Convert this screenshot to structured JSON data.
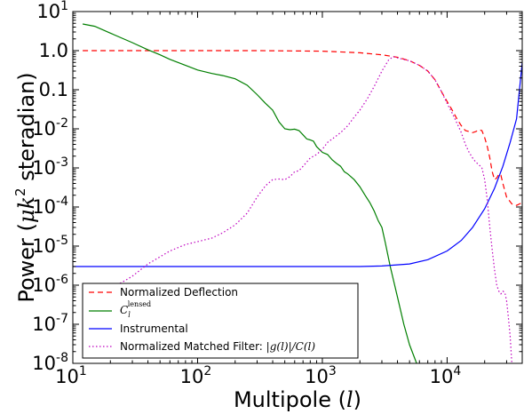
{
  "chart_data": {
    "type": "line",
    "xlabel_prefix": "Multipole (",
    "xlabel_var": "l",
    "xlabel_suffix": ")",
    "ylabel_prefix": "Power (",
    "ylabel_var": "μk",
    "ylabel_sup": "2",
    "ylabel_suffix": " steradian)",
    "x_scale": "log",
    "y_scale": "log",
    "xlim": [
      10,
      40000
    ],
    "ylim": [
      1e-08,
      10
    ],
    "x_ticks": [
      {
        "value": 10,
        "base": "10",
        "exp": "1"
      },
      {
        "value": 100,
        "base": "10",
        "exp": "2"
      },
      {
        "value": 1000,
        "base": "10",
        "exp": "3"
      },
      {
        "value": 10000,
        "base": "10",
        "exp": "4"
      }
    ],
    "y_ticks": [
      {
        "value": 10,
        "base": "10",
        "exp": "1"
      },
      {
        "value": 1,
        "base": "10",
        "exp": "0",
        "label": "1.0"
      },
      {
        "value": 0.1,
        "base": "10",
        "exp": "-1",
        "label": "0.1"
      },
      {
        "value": 0.01,
        "base": "10",
        "exp": "-2"
      },
      {
        "value": 0.001,
        "base": "10",
        "exp": "-3"
      },
      {
        "value": 0.0001,
        "base": "10",
        "exp": "-4"
      },
      {
        "value": 1e-05,
        "base": "10",
        "exp": "-5"
      },
      {
        "value": 1e-06,
        "base": "10",
        "exp": "-6"
      },
      {
        "value": 1e-07,
        "base": "10",
        "exp": "-7"
      },
      {
        "value": 1e-08,
        "base": "10",
        "exp": "-8"
      }
    ],
    "grid": false,
    "legend_position": "lower-left",
    "series": [
      {
        "key": "deflection",
        "name": "Normalized Deflection",
        "color": "#ff0000",
        "style": "dashed",
        "points": [
          [
            12,
            1.0
          ],
          [
            30,
            1.0
          ],
          [
            100,
            1.0
          ],
          [
            300,
            1.0
          ],
          [
            1000,
            0.97
          ],
          [
            2000,
            0.88
          ],
          [
            3000,
            0.78
          ],
          [
            4000,
            0.68
          ],
          [
            5000,
            0.55
          ],
          [
            6000,
            0.42
          ],
          [
            7000,
            0.3
          ],
          [
            8000,
            0.18
          ],
          [
            9000,
            0.09
          ],
          [
            10000,
            0.05
          ],
          [
            11000,
            0.03
          ],
          [
            12000,
            0.018
          ],
          [
            13000,
            0.012
          ],
          [
            14000,
            0.009
          ],
          [
            15000,
            0.0085
          ],
          [
            16000,
            0.008
          ],
          [
            17000,
            0.0085
          ],
          [
            18000,
            0.0095
          ],
          [
            19000,
            0.009
          ],
          [
            20000,
            0.006
          ],
          [
            21000,
            0.0035
          ],
          [
            22000,
            0.0018
          ],
          [
            23000,
            0.0008
          ],
          [
            24000,
            0.0005
          ],
          [
            25000,
            0.00055
          ],
          [
            26000,
            0.0007
          ],
          [
            27000,
            0.00065
          ],
          [
            28000,
            0.0004
          ],
          [
            30000,
            0.00018
          ],
          [
            33000,
            0.00012
          ],
          [
            36000,
            0.00011
          ],
          [
            40000,
            0.00013
          ]
        ]
      },
      {
        "key": "cl_lensed",
        "name_prefix": "C",
        "name_sub": "l",
        "name_sup": "lensed",
        "color": "#007f00",
        "style": "solid",
        "points": [
          [
            12,
            4.8
          ],
          [
            15,
            4.2
          ],
          [
            20,
            2.8
          ],
          [
            30,
            1.6
          ],
          [
            40,
            1.05
          ],
          [
            50,
            0.78
          ],
          [
            60,
            0.6
          ],
          [
            80,
            0.42
          ],
          [
            100,
            0.32
          ],
          [
            130,
            0.26
          ],
          [
            160,
            0.23
          ],
          [
            200,
            0.19
          ],
          [
            250,
            0.13
          ],
          [
            300,
            0.075
          ],
          [
            350,
            0.045
          ],
          [
            400,
            0.03
          ],
          [
            450,
            0.015
          ],
          [
            500,
            0.01
          ],
          [
            550,
            0.0095
          ],
          [
            600,
            0.0098
          ],
          [
            650,
            0.009
          ],
          [
            700,
            0.007
          ],
          [
            750,
            0.0055
          ],
          [
            800,
            0.0052
          ],
          [
            850,
            0.0048
          ],
          [
            900,
            0.0035
          ],
          [
            1000,
            0.0025
          ],
          [
            1100,
            0.0022
          ],
          [
            1200,
            0.0016
          ],
          [
            1300,
            0.0013
          ],
          [
            1400,
            0.0011
          ],
          [
            1500,
            0.0008
          ],
          [
            1600,
            0.0007
          ],
          [
            1800,
            0.0005
          ],
          [
            2000,
            0.00033
          ],
          [
            2200,
            0.0002
          ],
          [
            2400,
            0.00013
          ],
          [
            2600,
            8e-05
          ],
          [
            2800,
            4.5e-05
          ],
          [
            3000,
            3e-05
          ],
          [
            3200,
            1.2e-05
          ],
          [
            3500,
            3e-06
          ],
          [
            4000,
            5e-07
          ],
          [
            4500,
            1e-07
          ],
          [
            5000,
            3e-08
          ],
          [
            5700,
            1e-08
          ]
        ]
      },
      {
        "key": "instrumental",
        "name": "Instrumental",
        "color": "#0000ff",
        "style": "solid",
        "points": [
          [
            10,
            3e-06
          ],
          [
            100,
            3e-06
          ],
          [
            1000,
            3e-06
          ],
          [
            2000,
            3e-06
          ],
          [
            3000,
            3.1e-06
          ],
          [
            5000,
            3.5e-06
          ],
          [
            7000,
            4.5e-06
          ],
          [
            10000,
            7.5e-06
          ],
          [
            13000,
            1.4e-05
          ],
          [
            16000,
            3e-05
          ],
          [
            20000,
            9e-05
          ],
          [
            24000,
            0.0003
          ],
          [
            28000,
            0.0011
          ],
          [
            32000,
            0.0045
          ],
          [
            36000,
            0.018
          ],
          [
            40000,
            0.5
          ]
        ]
      },
      {
        "key": "matched_filter",
        "name": "Normalized Matched Filter: ",
        "name_math": "|g(l)|/C(l)",
        "color": "#bf00bf",
        "style": "dotted",
        "points": [
          [
            20,
            8.5e-07
          ],
          [
            25,
            1.2e-06
          ],
          [
            30,
            1.7e-06
          ],
          [
            40,
            3.5e-06
          ],
          [
            60,
            7.5e-06
          ],
          [
            80,
            1.1e-05
          ],
          [
            100,
            1.3e-05
          ],
          [
            130,
            1.6e-05
          ],
          [
            160,
            2.2e-05
          ],
          [
            200,
            3.5e-05
          ],
          [
            250,
            7e-05
          ],
          [
            300,
            0.00018
          ],
          [
            350,
            0.00035
          ],
          [
            400,
            0.0005
          ],
          [
            450,
            0.00052
          ],
          [
            500,
            0.0005
          ],
          [
            550,
            0.0006
          ],
          [
            600,
            0.0008
          ],
          [
            650,
            0.00085
          ],
          [
            700,
            0.0011
          ],
          [
            800,
            0.0018
          ],
          [
            900,
            0.0022
          ],
          [
            1000,
            0.003
          ],
          [
            1100,
            0.0045
          ],
          [
            1200,
            0.0055
          ],
          [
            1400,
            0.008
          ],
          [
            1600,
            0.012
          ],
          [
            1800,
            0.02
          ],
          [
            2000,
            0.03
          ],
          [
            2300,
            0.06
          ],
          [
            2600,
            0.12
          ],
          [
            3000,
            0.3
          ],
          [
            3400,
            0.58
          ],
          [
            3700,
            0.7
          ],
          [
            4000,
            0.65
          ],
          [
            5000,
            0.55
          ],
          [
            6000,
            0.42
          ],
          [
            7000,
            0.3
          ],
          [
            8000,
            0.18
          ],
          [
            9000,
            0.09
          ],
          [
            10000,
            0.045
          ],
          [
            11000,
            0.025
          ],
          [
            12000,
            0.014
          ],
          [
            13000,
            0.008
          ],
          [
            14000,
            0.004
          ],
          [
            15000,
            0.0025
          ],
          [
            16000,
            0.0018
          ],
          [
            17000,
            0.0014
          ],
          [
            18000,
            0.0012
          ],
          [
            19000,
            0.001
          ],
          [
            20000,
            0.0005
          ],
          [
            21000,
            0.00015
          ],
          [
            22000,
            3e-05
          ],
          [
            23000,
            8e-06
          ],
          [
            24000,
            2.5e-06
          ],
          [
            25000,
            1e-06
          ],
          [
            26000,
            7e-07
          ],
          [
            27000,
            6e-07
          ],
          [
            28000,
            7e-07
          ],
          [
            29000,
            6.5e-07
          ],
          [
            30000,
            4e-07
          ],
          [
            31000,
            1.5e-07
          ],
          [
            32000,
            5e-08
          ],
          [
            33000,
            1e-08
          ]
        ]
      }
    ]
  }
}
